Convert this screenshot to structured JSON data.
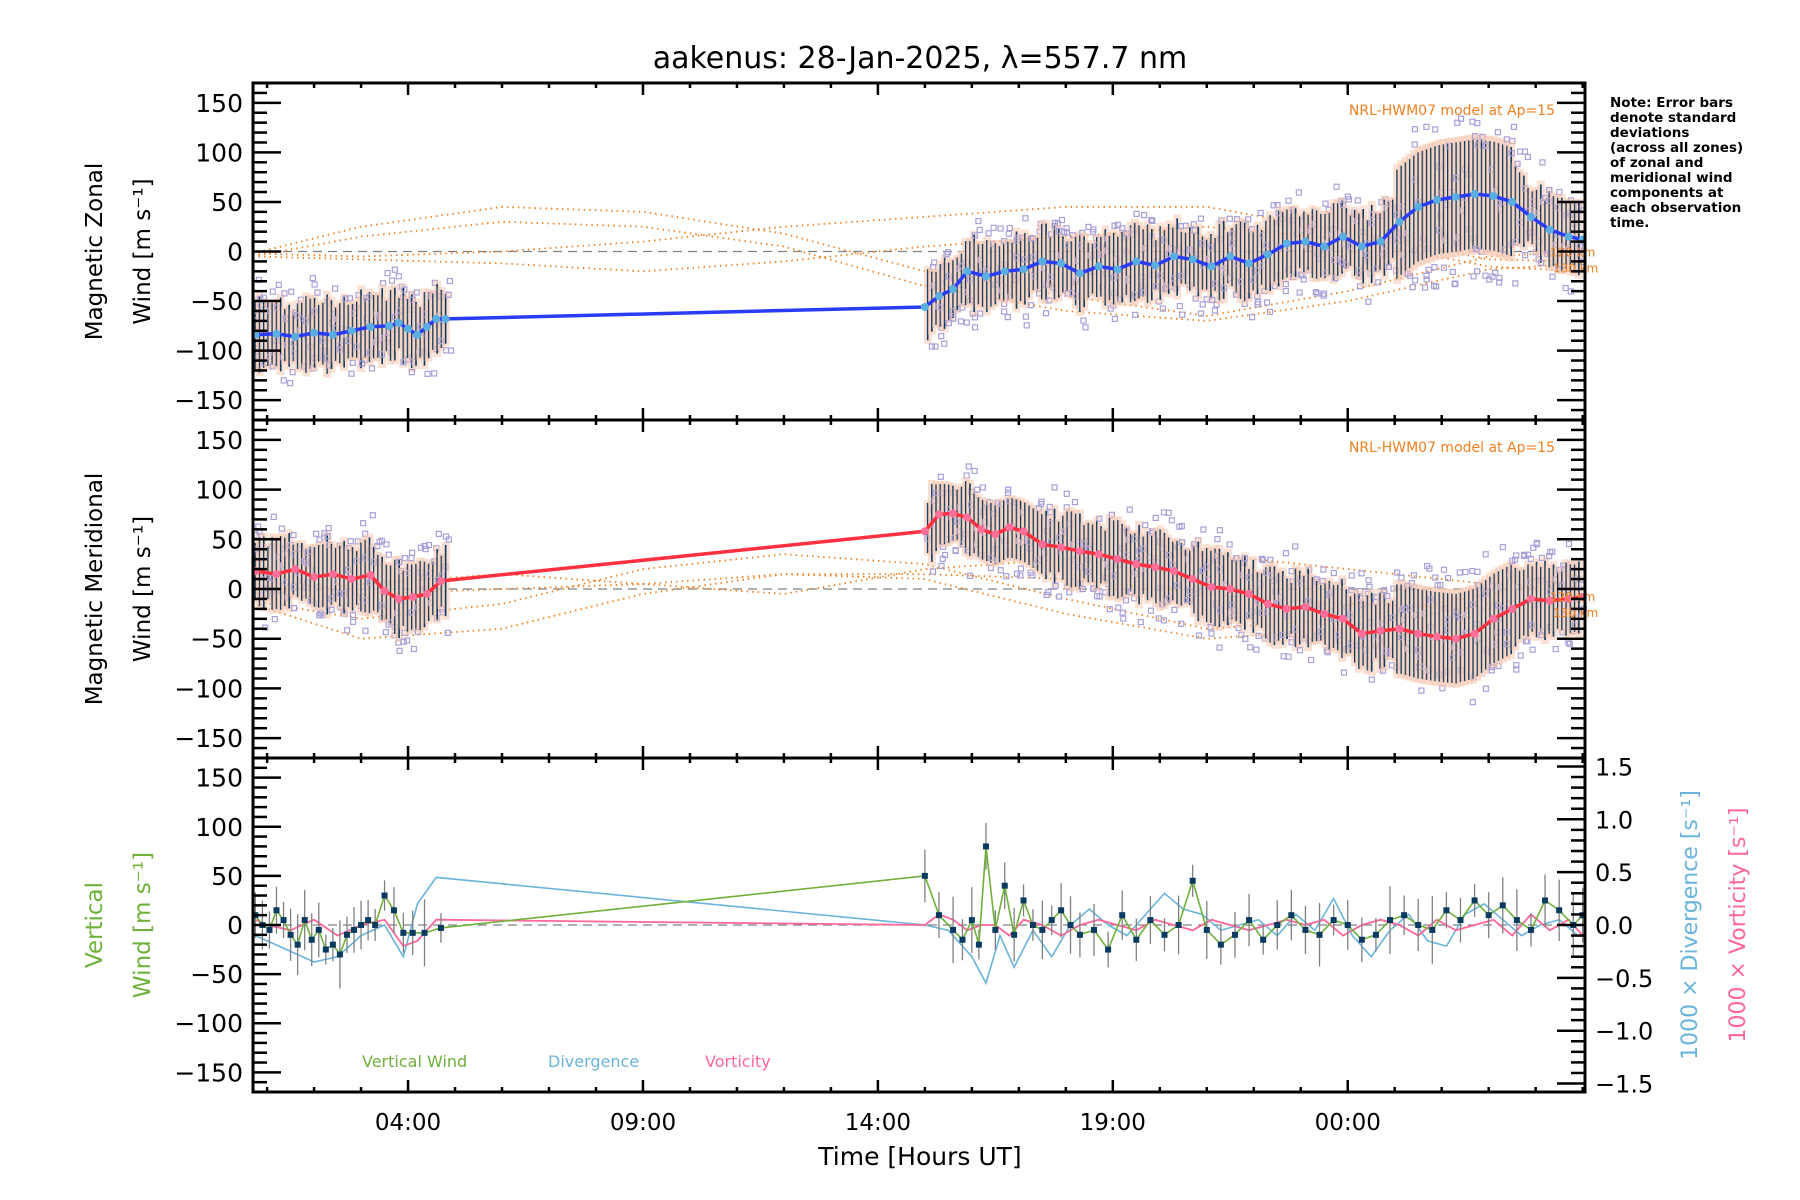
{
  "chart_data": [
    {
      "id": "zonal",
      "type": "line",
      "title": "aakenus: 28-Jan-2025, λ=557.7 nm",
      "ylabel_line1": "Magnetic Zonal",
      "ylabel_line2": "Wind [m s⁻¹]",
      "ylim": [
        -170,
        170
      ],
      "yticks": [
        150,
        100,
        50,
        0,
        -50,
        -100,
        -150
      ],
      "model_label": "NRL-HWM07 model at Ap=15",
      "altitude_labels": [
        "120 km",
        "130 km"
      ],
      "zero_line": "dashed",
      "mean_color": "#2a3cf5",
      "mean_marker_color": "#5aaee0",
      "series": [
        {
          "name": "zonal_mean",
          "x": [
            0.75,
            1.2,
            1.6,
            2.0,
            2.4,
            2.8,
            3.2,
            3.6,
            3.8,
            4.0,
            4.2,
            4.4,
            4.6,
            4.8,
            15.0,
            15.3,
            15.6,
            15.9,
            16.3,
            16.7,
            17.1,
            17.5,
            17.9,
            18.3,
            18.7,
            19.1,
            19.5,
            19.9,
            20.3,
            20.7,
            21.1,
            21.5,
            21.9,
            22.3,
            22.7,
            23.1,
            23.5,
            23.9,
            24.3,
            24.7,
            25.1,
            25.5,
            25.9,
            26.3,
            26.7,
            27.1,
            27.5,
            27.9,
            28.3,
            28.7,
            29.0
          ],
          "y": [
            -84,
            -83,
            -86,
            -82,
            -84,
            -80,
            -76,
            -75,
            -72,
            -78,
            -84,
            -76,
            -68,
            -68,
            -56,
            -45,
            -38,
            -20,
            -25,
            -20,
            -18,
            -10,
            -12,
            -22,
            -15,
            -18,
            -10,
            -14,
            -5,
            -8,
            -15,
            -5,
            -12,
            -3,
            8,
            10,
            5,
            15,
            5,
            10,
            30,
            45,
            52,
            55,
            58,
            56,
            50,
            35,
            22,
            15,
            12
          ]
        },
        {
          "name": "model_120km_a",
          "x": [
            0.7,
            3,
            6,
            9,
            12,
            15,
            18,
            21,
            24,
            27,
            29
          ],
          "y": [
            -2,
            25,
            45,
            40,
            18,
            -20,
            -45,
            -65,
            -40,
            -5,
            0
          ]
        },
        {
          "name": "model_130km_a",
          "x": [
            0.7,
            3,
            6,
            9,
            12,
            15,
            18,
            21,
            24,
            27,
            29
          ],
          "y": [
            -5,
            15,
            30,
            25,
            5,
            -35,
            -60,
            -70,
            -50,
            -18,
            -12
          ]
        },
        {
          "name": "model_120km_b",
          "x": [
            0.7,
            3,
            6,
            9,
            12,
            15,
            18,
            21,
            24,
            27,
            29
          ],
          "y": [
            -2,
            -5,
            0,
            10,
            25,
            35,
            45,
            45,
            20,
            -8,
            -10
          ]
        },
        {
          "name": "model_130km_b",
          "x": [
            0.7,
            3,
            6,
            9,
            12,
            15,
            18,
            21,
            24,
            27,
            29
          ],
          "y": [
            -5,
            -8,
            -12,
            -20,
            -10,
            5,
            15,
            25,
            12,
            -15,
            -20
          ]
        }
      ]
    },
    {
      "id": "meridional",
      "type": "line",
      "ylabel_line1": "Magnetic Meridional",
      "ylabel_line2": "Wind [m s⁻¹]",
      "ylim": [
        -170,
        170
      ],
      "yticks": [
        150,
        100,
        50,
        0,
        -50,
        -100,
        -150
      ],
      "model_label": "NRL-HWM07 model at Ap=15",
      "altitude_labels": [
        "120 km",
        "130 km"
      ],
      "zero_line": "dashed",
      "mean_color": "#ff3040",
      "mean_marker_color": "#ff6f9a",
      "series": [
        {
          "name": "meridional_mean",
          "x": [
            0.75,
            1.2,
            1.6,
            2.0,
            2.4,
            2.8,
            3.2,
            3.5,
            3.8,
            4.1,
            4.4,
            4.7,
            15.0,
            15.3,
            15.6,
            15.9,
            16.2,
            16.5,
            16.8,
            17.1,
            17.5,
            17.9,
            18.3,
            18.7,
            19.1,
            19.5,
            19.9,
            20.3,
            20.7,
            21.1,
            21.5,
            21.9,
            22.3,
            22.7,
            23.1,
            23.5,
            23.9,
            24.3,
            24.7,
            25.1,
            25.5,
            25.9,
            26.3,
            26.7,
            27.1,
            27.5,
            27.9,
            28.3,
            28.7,
            29.0
          ],
          "y": [
            18,
            15,
            20,
            12,
            15,
            10,
            14,
            -2,
            -10,
            -8,
            -5,
            8,
            58,
            75,
            76,
            72,
            60,
            55,
            62,
            58,
            45,
            42,
            38,
            35,
            30,
            25,
            22,
            18,
            10,
            2,
            0,
            -5,
            -15,
            -20,
            -18,
            -25,
            -30,
            -45,
            -42,
            -40,
            -45,
            -48,
            -50,
            -45,
            -30,
            -20,
            -10,
            -12,
            -10,
            -8
          ]
        },
        {
          "name": "model_120km_a",
          "x": [
            0.7,
            3,
            6,
            9,
            12,
            15,
            18,
            21,
            24,
            27,
            29
          ],
          "y": [
            -12,
            -30,
            -15,
            20,
            35,
            25,
            -10,
            -40,
            -30,
            -5,
            10
          ]
        },
        {
          "name": "model_130km_a",
          "x": [
            0.7,
            3,
            6,
            9,
            12,
            15,
            18,
            21,
            24,
            27,
            29
          ],
          "y": [
            -15,
            -50,
            -40,
            -5,
            15,
            10,
            -25,
            -50,
            -40,
            -15,
            -5
          ]
        },
        {
          "name": "model_120km_b",
          "x": [
            0.7,
            3,
            6,
            9,
            12,
            15,
            18,
            21,
            24,
            27,
            29
          ],
          "y": [
            -5,
            5,
            15,
            5,
            -5,
            20,
            30,
            35,
            20,
            5,
            15
          ]
        },
        {
          "name": "model_130km_b",
          "x": [
            0.7,
            3,
            6,
            9,
            12,
            15,
            18,
            21,
            24,
            27,
            29
          ],
          "y": [
            -10,
            -5,
            0,
            5,
            15,
            15,
            10,
            -5,
            -15,
            -20,
            -5
          ]
        }
      ]
    },
    {
      "id": "vertical",
      "type": "line",
      "ylabel_line1": "Vertical",
      "ylabel_line2": "Wind [m s⁻¹]",
      "ylim": [
        -170,
        170
      ],
      "yticks": [
        150,
        100,
        50,
        0,
        -50,
        -100,
        -150
      ],
      "y2label_divergence": "1000 × Divergence [s⁻¹]",
      "y2label_vorticity": "1000 × Vorticity [s⁻¹]",
      "y2lim": [
        -1.58,
        1.58
      ],
      "y2ticks": [
        "1.5",
        "1.0",
        "0.5",
        "0.0",
        "−0.5",
        "−1.0",
        "−1.5"
      ],
      "y2tick_values": [
        1.5,
        1.0,
        0.5,
        0.0,
        -0.5,
        -1.0,
        -1.5
      ],
      "legend": [
        {
          "label": "Vertical Wind",
          "color": "#6fb13a"
        },
        {
          "label": "Divergence",
          "color": "#6ab4dc"
        },
        {
          "label": "Vorticity",
          "color": "#ff6699"
        }
      ],
      "legend_position": "bottom-left",
      "series": [
        {
          "name": "Vertical Wind",
          "axis": "left",
          "x": [
            0.75,
            0.9,
            1.05,
            1.2,
            1.35,
            1.5,
            1.65,
            1.8,
            1.95,
            2.1,
            2.25,
            2.4,
            2.55,
            2.7,
            2.85,
            3.0,
            3.15,
            3.3,
            3.5,
            3.7,
            3.9,
            4.1,
            4.35,
            4.7,
            15.0,
            15.3,
            15.6,
            15.8,
            16.0,
            16.15,
            16.3,
            16.5,
            16.7,
            16.9,
            17.1,
            17.3,
            17.5,
            17.7,
            17.9,
            18.1,
            18.3,
            18.6,
            18.9,
            19.2,
            19.5,
            19.8,
            20.1,
            20.4,
            20.7,
            21.0,
            21.3,
            21.6,
            21.9,
            22.2,
            22.5,
            22.8,
            23.1,
            23.4,
            23.7,
            24.0,
            24.3,
            24.6,
            24.9,
            25.2,
            25.5,
            25.8,
            26.1,
            26.4,
            26.7,
            27.0,
            27.3,
            27.6,
            27.9,
            28.2,
            28.5,
            28.8,
            29.0
          ],
          "y": [
            10,
            0,
            -5,
            15,
            5,
            -10,
            -20,
            5,
            -15,
            -5,
            -25,
            -20,
            -30,
            -10,
            -5,
            0,
            5,
            0,
            30,
            15,
            -8,
            -8,
            -8,
            -3,
            50,
            10,
            -5,
            -15,
            5,
            -20,
            80,
            -5,
            40,
            -10,
            25,
            0,
            -5,
            5,
            15,
            0,
            -10,
            -5,
            -25,
            10,
            -15,
            5,
            -10,
            0,
            45,
            -5,
            -20,
            -10,
            5,
            -15,
            0,
            10,
            -5,
            -10,
            5,
            0,
            -15,
            -10,
            5,
            10,
            0,
            -5,
            15,
            5,
            25,
            10,
            20,
            5,
            -5,
            25,
            15,
            0,
            10
          ]
        },
        {
          "name": "Divergence",
          "axis": "right",
          "x": [
            0.75,
            1.0,
            1.5,
            2.0,
            2.5,
            3.0,
            3.5,
            3.9,
            4.2,
            4.6,
            15.0,
            15.5,
            16.0,
            16.3,
            16.6,
            16.9,
            17.3,
            17.7,
            18.1,
            18.5,
            18.9,
            19.3,
            19.7,
            20.1,
            20.5,
            20.9,
            21.3,
            21.7,
            22.1,
            22.5,
            22.9,
            23.3,
            23.7,
            24.1,
            24.5,
            24.9,
            25.3,
            25.7,
            26.1,
            26.5,
            26.9,
            27.3,
            27.7,
            28.1,
            28.5,
            28.9
          ],
          "y": [
            -0.1,
            -0.15,
            -0.25,
            -0.35,
            -0.3,
            -0.1,
            0.0,
            -0.3,
            0.2,
            0.45,
            0.0,
            -0.05,
            -0.3,
            -0.55,
            -0.1,
            -0.4,
            -0.05,
            -0.3,
            0.0,
            0.15,
            0.0,
            -0.1,
            0.1,
            0.3,
            0.15,
            0.1,
            -0.05,
            0.0,
            0.05,
            -0.1,
            0.1,
            -0.05,
            0.25,
            -0.1,
            -0.3,
            -0.05,
            0.1,
            -0.15,
            -0.2,
            0.1,
            0.2,
            0.05,
            -0.1,
            0.0,
            0.05,
            -0.1
          ]
        },
        {
          "name": "Vorticity",
          "axis": "right",
          "x": [
            0.75,
            1.0,
            1.5,
            2.0,
            2.5,
            3.0,
            3.5,
            3.9,
            4.2,
            4.6,
            15.0,
            15.3,
            15.6,
            15.9,
            16.2,
            16.5,
            16.8,
            17.1,
            17.5,
            17.9,
            18.3,
            18.7,
            19.1,
            19.5,
            19.9,
            20.3,
            20.7,
            21.1,
            21.5,
            21.9,
            22.3,
            22.7,
            23.1,
            23.5,
            23.9,
            24.3,
            24.7,
            25.1,
            25.5,
            25.9,
            26.3,
            26.7,
            27.1,
            27.5,
            27.9,
            28.3,
            28.7,
            29.0
          ],
          "y": [
            0.05,
            0.0,
            -0.05,
            0.05,
            -0.1,
            0.0,
            0.05,
            -0.2,
            -0.15,
            0.05,
            0.0,
            0.1,
            0.05,
            -0.05,
            0.0,
            0.0,
            -0.1,
            0.05,
            0.0,
            -0.1,
            0.0,
            0.05,
            0.0,
            -0.05,
            0.05,
            0.0,
            -0.05,
            0.05,
            0.0,
            -0.05,
            0.0,
            0.05,
            0.0,
            0.05,
            -0.1,
            0.0,
            0.05,
            0.0,
            -0.1,
            0.05,
            -0.05,
            0.0,
            0.05,
            -0.1,
            0.1,
            -0.05,
            0.05,
            -0.1
          ]
        }
      ]
    }
  ],
  "xaxis": {
    "label": "Time [Hours UT]",
    "xlim_hours": [
      0.7,
      29.05
    ],
    "ticks": [
      {
        "value": 4,
        "label": "04:00"
      },
      {
        "value": 9,
        "label": "09:00"
      },
      {
        "value": 14,
        "label": "14:00"
      },
      {
        "value": 19,
        "label": "19:00"
      },
      {
        "value": 24,
        "label": "00:00"
      }
    ]
  },
  "colors": {
    "model": "#f08020",
    "scatter": "#a8a0d8",
    "errorbar": "#0a3a60",
    "zero_line": "#808080",
    "vertical_errorbar": "#808080",
    "vertical_marker": "#0a3a60"
  },
  "note": [
    "Note: Error bars",
    "denote standard",
    "deviations",
    "(across all zones)",
    "of zonal and",
    "meridional wind",
    "components at",
    "each observation",
    "time."
  ]
}
